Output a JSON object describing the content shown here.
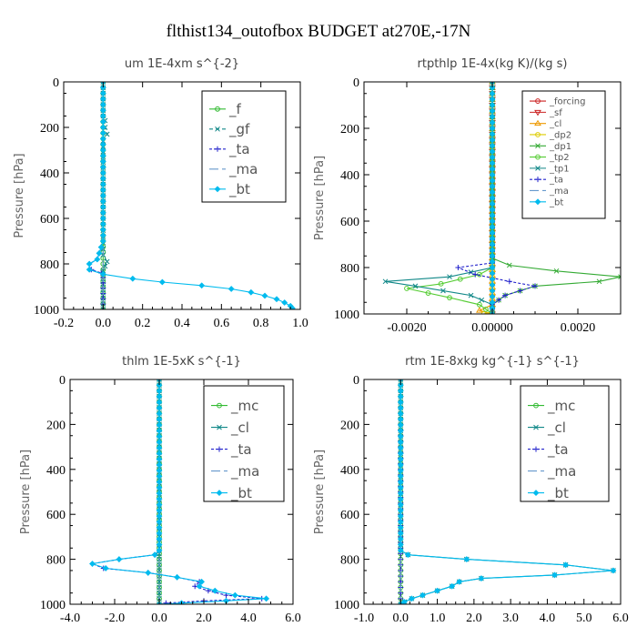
{
  "title": "flthist134_outofbox  BUDGET at270E,-17N",
  "chart_data": [
    {
      "type": "line",
      "title": "um   1E-4xm s^{-2}",
      "ylabel": "Pressure [hPa]",
      "xlim": [
        -0.2,
        1.0
      ],
      "ylim": [
        0,
        1000
      ],
      "xticks": [
        "-0.2",
        "0.0",
        "0.2",
        "0.4",
        "0.6",
        "0.8",
        "1.0"
      ],
      "xtick_values": [
        -0.2,
        0.0,
        0.2,
        0.4,
        0.6,
        0.8,
        1.0
      ],
      "yticks": [
        "0",
        "200",
        "400",
        "600",
        "800",
        "1000"
      ],
      "ytick_values": [
        0,
        200,
        400,
        600,
        800,
        1000
      ],
      "legend": {
        "position": "top-right",
        "font": 15
      },
      "series": [
        {
          "name": "_f",
          "color": "#33bb33",
          "marker": "o",
          "dash": "",
          "points": [
            [
              0,
              0
            ],
            [
              0,
              100
            ],
            [
              0,
              200
            ],
            [
              0,
              300
            ],
            [
              0,
              400
            ],
            [
              0,
              500
            ],
            [
              0,
              600
            ],
            [
              0,
              700
            ],
            [
              0,
              800
            ],
            [
              0,
              900
            ],
            [
              0,
              1000
            ]
          ]
        },
        {
          "name": "_gf",
          "color": "#118888",
          "marker": "x",
          "dash": "4,3",
          "points": [
            [
              0,
              0
            ],
            [
              0,
              150
            ],
            [
              0.01,
              170
            ],
            [
              0.01,
              200
            ],
            [
              0.02,
              230
            ],
            [
              0,
              260
            ],
            [
              0,
              400
            ],
            [
              0,
              600
            ],
            [
              0,
              760
            ],
            [
              0.02,
              790
            ],
            [
              0,
              830
            ],
            [
              0,
              1000
            ]
          ]
        },
        {
          "name": "_ta",
          "color": "#2222cc",
          "marker": "+",
          "dash": "3,2",
          "points": [
            [
              0,
              0
            ],
            [
              0,
              700
            ],
            [
              -0.03,
              780
            ],
            [
              -0.07,
              800
            ],
            [
              -0.06,
              825
            ],
            [
              -0.01,
              840
            ],
            [
              0,
              860
            ],
            [
              0,
              1000
            ]
          ]
        },
        {
          "name": "_ma",
          "color": "#6699cc",
          "marker": "-",
          "dash": "10,4",
          "points": [
            [
              0,
              0
            ],
            [
              0,
              800
            ],
            [
              0,
              1000
            ]
          ]
        },
        {
          "name": "_bt",
          "color": "#00bbee",
          "marker": "d",
          "dash": "",
          "points": [
            [
              0,
              0
            ],
            [
              0,
              700
            ],
            [
              -0.03,
              780
            ],
            [
              -0.07,
              800
            ],
            [
              -0.07,
              825
            ],
            [
              0,
              845
            ],
            [
              0.15,
              865
            ],
            [
              0.3,
              880
            ],
            [
              0.5,
              895
            ],
            [
              0.65,
              910
            ],
            [
              0.75,
              925
            ],
            [
              0.82,
              940
            ],
            [
              0.88,
              955
            ],
            [
              0.92,
              970
            ],
            [
              0.95,
              985
            ],
            [
              0.96,
              995
            ]
          ]
        }
      ]
    },
    {
      "type": "line",
      "title": "rtpthlp   1E-4x(kg K)/(kg s)",
      "ylabel": "Pressure [hPa]",
      "xlim": [
        -0.003,
        0.003
      ],
      "ylim": [
        0,
        1000
      ],
      "xticks": [
        "-0.0020",
        "0.00000",
        "0.0020"
      ],
      "xtick_values": [
        -0.002,
        0,
        0.002
      ],
      "yticks": [
        "0",
        "200",
        "400",
        "600",
        "800",
        "1000"
      ],
      "ytick_values": [
        0,
        200,
        400,
        600,
        800,
        1000
      ],
      "legend": {
        "position": "top-right",
        "font": 10
      },
      "series": [
        {
          "name": "_forcing",
          "color": "#cc2222",
          "marker": "o",
          "dash": "",
          "points": [
            [
              0,
              0
            ],
            [
              0,
              1000
            ]
          ]
        },
        {
          "name": "_sf",
          "color": "#cc2222",
          "marker": "v",
          "dash": "",
          "points": [
            [
              0,
              0
            ],
            [
              0,
              1000
            ]
          ]
        },
        {
          "name": "_cl",
          "color": "#ee9900",
          "marker": "^",
          "dash": "",
          "points": [
            [
              0,
              0
            ],
            [
              0,
              960
            ],
            [
              -0.0003,
              985
            ],
            [
              0,
              1000
            ]
          ]
        },
        {
          "name": "_dp2",
          "color": "#ddcc00",
          "marker": "o",
          "dash": "",
          "points": [
            [
              0,
              0
            ],
            [
              0,
              990
            ],
            [
              -0.0002,
              1000
            ]
          ]
        },
        {
          "name": "_dp1",
          "color": "#33aa33",
          "marker": "x",
          "dash": "",
          "points": [
            [
              0,
              0
            ],
            [
              0,
              760
            ],
            [
              0.0004,
              790
            ],
            [
              0.0015,
              815
            ],
            [
              0.003,
              840
            ],
            [
              0.0025,
              860
            ],
            [
              0.001,
              880
            ],
            [
              0.0003,
              920
            ],
            [
              0,
              960
            ],
            [
              0,
              1000
            ]
          ]
        },
        {
          "name": "_tp2",
          "color": "#55cc33",
          "marker": "o",
          "dash": "",
          "points": [
            [
              0,
              0
            ],
            [
              0,
              800
            ],
            [
              -0.0003,
              830
            ],
            [
              -0.0012,
              870
            ],
            [
              -0.002,
              890
            ],
            [
              -0.001,
              930
            ],
            [
              -0.0003,
              960
            ],
            [
              0,
              1000
            ]
          ]
        },
        {
          "name": "_tp1",
          "color": "#118888",
          "marker": "x",
          "dash": "",
          "points": [
            [
              0,
              0
            ],
            [
              0,
              800
            ],
            [
              -0.001,
              840
            ],
            [
              -0.0025,
              860
            ],
            [
              -0.0018,
              880
            ],
            [
              -0.0005,
              920
            ],
            [
              0,
              960
            ],
            [
              0,
              1000
            ]
          ]
        },
        {
          "name": "_ta",
          "color": "#2222cc",
          "marker": "+",
          "dash": "3,2",
          "points": [
            [
              0,
              0
            ],
            [
              0,
              780
            ],
            [
              -0.0008,
              800
            ],
            [
              -0.0004,
              830
            ],
            [
              0.0004,
              860
            ],
            [
              0.001,
              880
            ],
            [
              0.0003,
              920
            ],
            [
              0,
              960
            ],
            [
              0,
              1000
            ]
          ]
        },
        {
          "name": "_ma",
          "color": "#6699cc",
          "marker": "-",
          "dash": "10,4",
          "points": [
            [
              0,
              0
            ],
            [
              0,
              1000
            ]
          ]
        },
        {
          "name": "_bt",
          "color": "#00bbee",
          "marker": "d",
          "dash": "",
          "points": [
            [
              0,
              0
            ],
            [
              0,
              1000
            ]
          ]
        }
      ]
    },
    {
      "type": "line",
      "title": "thlm   1E-5xK s^{-1}",
      "ylabel": "Pressure [hPa]",
      "xlim": [
        -4.0,
        6.0
      ],
      "ylim": [
        0,
        1000
      ],
      "xticks": [
        "-4.0",
        "-2.0",
        "0.0",
        "2.0",
        "4.0",
        "6.0"
      ],
      "xtick_values": [
        -4,
        -2,
        0,
        2,
        4,
        6
      ],
      "yticks": [
        "0",
        "200",
        "400",
        "600",
        "800",
        "1000"
      ],
      "ytick_values": [
        0,
        200,
        400,
        600,
        800,
        1000
      ],
      "legend": {
        "position": "top-right",
        "font": 15
      },
      "series": [
        {
          "name": "_mc",
          "color": "#33bb33",
          "marker": "o",
          "dash": "",
          "points": [
            [
              0,
              0
            ],
            [
              0,
              100
            ],
            [
              0,
              200
            ],
            [
              0,
              300
            ],
            [
              0,
              400
            ],
            [
              0,
              500
            ],
            [
              0,
              600
            ],
            [
              0,
              700
            ],
            [
              0,
              800
            ],
            [
              0,
              900
            ],
            [
              0,
              1000
            ]
          ]
        },
        {
          "name": "_cl",
          "color": "#118888",
          "marker": "x",
          "dash": "",
          "points": [
            [
              0,
              0
            ],
            [
              0,
              1000
            ]
          ]
        },
        {
          "name": "_ta",
          "color": "#2222cc",
          "marker": "+",
          "dash": "3,2",
          "points": [
            [
              0,
              0
            ],
            [
              0,
              760
            ],
            [
              -0.2,
              780
            ],
            [
              -1.8,
              800
            ],
            [
              -3.0,
              820
            ],
            [
              -2.5,
              840
            ],
            [
              -0.5,
              860
            ],
            [
              0.8,
              880
            ],
            [
              1.8,
              900
            ],
            [
              1.6,
              920
            ],
            [
              2.2,
              940
            ],
            [
              3.0,
              960
            ],
            [
              4.6,
              975
            ],
            [
              2.0,
              985
            ],
            [
              0.3,
              995
            ],
            [
              0,
              1000
            ]
          ]
        },
        {
          "name": "_ma",
          "color": "#6699cc",
          "marker": "-",
          "dash": "10,4",
          "points": [
            [
              0,
              0
            ],
            [
              0,
              1000
            ]
          ]
        },
        {
          "name": "_bt",
          "color": "#00bbee",
          "marker": "d",
          "dash": "",
          "points": [
            [
              0,
              0
            ],
            [
              0,
              760
            ],
            [
              -0.2,
              780
            ],
            [
              -1.8,
              800
            ],
            [
              -3.0,
              820
            ],
            [
              -2.4,
              840
            ],
            [
              -0.5,
              860
            ],
            [
              0.8,
              880
            ],
            [
              1.9,
              900
            ],
            [
              1.8,
              920
            ],
            [
              2.5,
              940
            ],
            [
              3.4,
              960
            ],
            [
              4.8,
              975
            ],
            [
              3.0,
              985
            ],
            [
              1.0,
              995
            ],
            [
              0,
              1000
            ]
          ]
        }
      ]
    },
    {
      "type": "line",
      "title": "rtm   1E-8xkg kg^{-1} s^{-1}",
      "ylabel": "Pressure [hPa]",
      "xlim": [
        -1.0,
        6.0
      ],
      "ylim": [
        0,
        1000
      ],
      "xticks": [
        "-1.0",
        "0.0",
        "1.0",
        "2.0",
        "3.0",
        "4.0",
        "5.0",
        "6.0"
      ],
      "xtick_values": [
        -1,
        0,
        1,
        2,
        3,
        4,
        5,
        6
      ],
      "yticks": [
        "0",
        "200",
        "400",
        "600",
        "800",
        "1000"
      ],
      "ytick_values": [
        0,
        200,
        400,
        600,
        800,
        1000
      ],
      "legend": {
        "position": "top-right",
        "font": 15
      },
      "series": [
        {
          "name": "_mc",
          "color": "#33bb33",
          "marker": "o",
          "dash": "",
          "points": [
            [
              0,
              0
            ],
            [
              0,
              100
            ],
            [
              0,
              200
            ],
            [
              0,
              300
            ],
            [
              0,
              400
            ],
            [
              0,
              500
            ],
            [
              0,
              600
            ],
            [
              0,
              700
            ],
            [
              0,
              800
            ],
            [
              0,
              900
            ],
            [
              0,
              1000
            ]
          ]
        },
        {
          "name": "_cl",
          "color": "#118888",
          "marker": "x",
          "dash": "",
          "points": [
            [
              0,
              0
            ],
            [
              0,
              760
            ],
            [
              0.2,
              780
            ],
            [
              1.8,
              800
            ],
            [
              4.5,
              825
            ],
            [
              5.8,
              850
            ],
            [
              4.2,
              870
            ],
            [
              2.2,
              885
            ],
            [
              1.6,
              900
            ],
            [
              1.4,
              920
            ],
            [
              1.0,
              940
            ],
            [
              0.6,
              960
            ],
            [
              0.3,
              975
            ],
            [
              0.1,
              990
            ],
            [
              0,
              1000
            ]
          ]
        },
        {
          "name": "_ta",
          "color": "#2222cc",
          "marker": "+",
          "dash": "3,2",
          "points": [
            [
              0,
              0
            ],
            [
              0,
              1000
            ]
          ]
        },
        {
          "name": "_ma",
          "color": "#6699cc",
          "marker": "-",
          "dash": "10,4",
          "points": [
            [
              0,
              0
            ],
            [
              0,
              1000
            ]
          ]
        },
        {
          "name": "_bt",
          "color": "#00bbee",
          "marker": "d",
          "dash": "",
          "points": [
            [
              0,
              0
            ],
            [
              0,
              760
            ],
            [
              0.2,
              780
            ],
            [
              1.8,
              800
            ],
            [
              4.5,
              825
            ],
            [
              5.8,
              850
            ],
            [
              4.2,
              870
            ],
            [
              2.2,
              885
            ],
            [
              1.6,
              900
            ],
            [
              1.4,
              920
            ],
            [
              1.0,
              940
            ],
            [
              0.6,
              960
            ],
            [
              0.3,
              975
            ],
            [
              0.1,
              990
            ],
            [
              0,
              1000
            ]
          ]
        }
      ]
    }
  ]
}
